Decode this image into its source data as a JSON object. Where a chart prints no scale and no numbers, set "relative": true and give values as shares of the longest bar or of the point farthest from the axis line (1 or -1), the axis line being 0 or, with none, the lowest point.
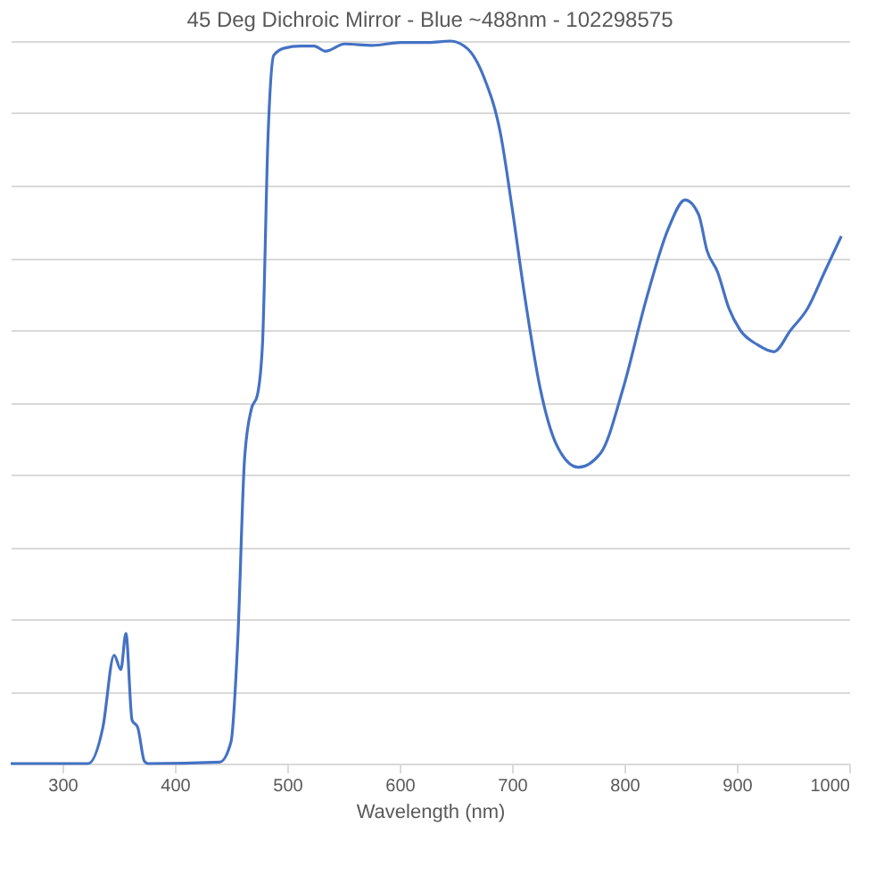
{
  "chart_data": {
    "type": "line",
    "title": "45 Deg Dichroic Mirror - Blue ~488nm - 102298575",
    "xlabel": "Wavelength (nm)",
    "relative": true,
    "grid": "y",
    "xlim": [
      254,
      1000
    ],
    "xticks": [
      300,
      400,
      500,
      600,
      700,
      800,
      900,
      1000
    ],
    "series": [
      {
        "color": "#4472c4",
        "x": [
          254,
          323,
          336,
          346,
          352,
          356.5,
          362,
          367,
          373,
          376,
          440,
          450,
          456,
          462,
          468,
          473.5,
          478,
          483,
          488,
          497,
          512,
          524,
          534,
          551,
          576,
          601,
          626,
          645,
          660,
          675,
          690,
          700,
          712,
          725,
          740,
          759,
          779,
          799,
          819,
          839,
          854,
          866,
          873.5,
          883,
          893,
          903,
          918,
          933,
          948,
          963,
          978,
          993
        ],
        "values": [
          0,
          0,
          0.05,
          0.15,
          0.13,
          0.18,
          0.06,
          0.05,
          0.003,
          0,
          0.002,
          0.03,
          0.17,
          0.42,
          0.49,
          0.51,
          0.58,
          0.87,
          0.98,
          0.99,
          0.993,
          0.993,
          0.986,
          0.996,
          0.994,
          0.998,
          0.998,
          1,
          0.99,
          0.95,
          0.87,
          0.77,
          0.64,
          0.52,
          0.44,
          0.41,
          0.43,
          0.52,
          0.64,
          0.74,
          0.78,
          0.76,
          0.71,
          0.68,
          0.63,
          0.6,
          0.58,
          0.57,
          0.6,
          0.63,
          0.68,
          0.73
        ]
      }
    ]
  }
}
